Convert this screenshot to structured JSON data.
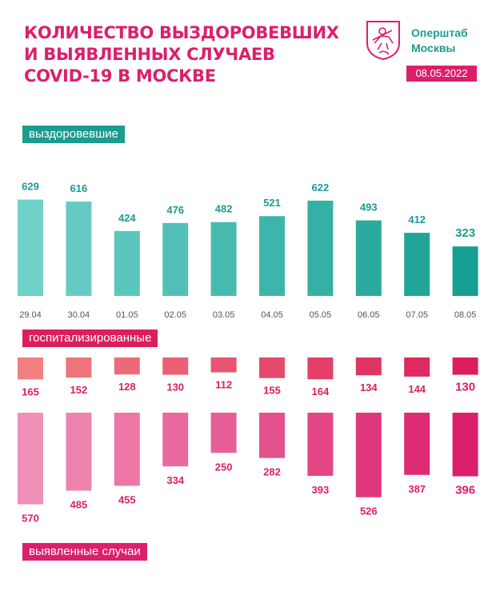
{
  "header": {
    "title_lines": [
      "КОЛИЧЕСТВО ВЫЗДОРОВЕВШИХ",
      "И ВЫЯВЛЕННЫХ СЛУЧАЕВ",
      "COVID-19 В МОСКВЕ"
    ],
    "brand_lines": [
      "Оперштаб",
      "Москвы"
    ],
    "date": "08.05.2022",
    "logo_icon": "moscow-coat-of-arms-icon"
  },
  "colors": {
    "accent": "#dc1f6b",
    "teal": "#1c9b8f",
    "teal_light": "#6fd1c8",
    "teal_dark": "#179f92",
    "coral_light": "#f08080",
    "crimson": "#dc1f5c",
    "pink_light": "#f090b8",
    "magenta": "#dc1f6b"
  },
  "chart_data": {
    "type": "bar",
    "categories": [
      "29.04",
      "30.04",
      "01.05",
      "02.05",
      "03.05",
      "04.05",
      "05.05",
      "06.05",
      "07.05",
      "08.05"
    ],
    "series": [
      {
        "name": "выздоровевшие",
        "values": [
          629,
          616,
          424,
          476,
          482,
          521,
          622,
          493,
          412,
          323
        ]
      },
      {
        "name": "госпитализированные",
        "values": [
          165,
          152,
          128,
          130,
          112,
          155,
          164,
          134,
          144,
          130
        ]
      },
      {
        "name": "выявленные случаи",
        "values": [
          570,
          485,
          455,
          334,
          250,
          282,
          393,
          526,
          387,
          396
        ]
      }
    ]
  }
}
